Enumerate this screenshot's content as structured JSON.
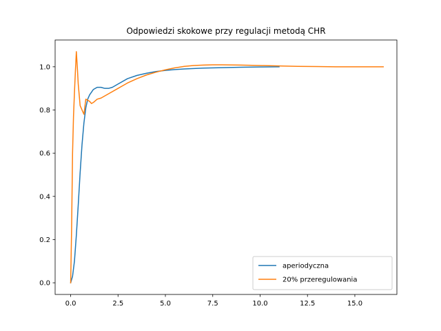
{
  "chart_data": {
    "type": "line",
    "title": "Odpowiedzi skokowe przy regulacji metodą CHR",
    "xlabel": "",
    "ylabel": "",
    "xlim": [
      -0.82,
      17.22
    ],
    "ylim": [
      -0.054,
      1.124
    ],
    "xticks": [
      0.0,
      2.5,
      5.0,
      7.5,
      10.0,
      12.5,
      15.0
    ],
    "xtick_labels": [
      "0.0",
      "2.5",
      "5.0",
      "7.5",
      "10.0",
      "12.5",
      "15.0"
    ],
    "yticks": [
      0.0,
      0.2,
      0.4,
      0.6,
      0.8,
      1.0
    ],
    "ytick_labels": [
      "0.0",
      "0.2",
      "0.4",
      "0.6",
      "0.8",
      "1.0"
    ],
    "grid": false,
    "legend_position": "lower-right",
    "series": [
      {
        "name": "aperiodyczna",
        "color": "#1f77b4",
        "x": [
          0,
          0.1,
          0.2,
          0.3,
          0.4,
          0.5,
          0.6,
          0.7,
          0.8,
          0.9,
          1.0,
          1.2,
          1.4,
          1.6,
          1.8,
          2.0,
          2.2,
          2.5,
          3.0,
          3.5,
          4.0,
          4.5,
          5.0,
          5.5,
          6.0,
          7.0,
          8.0,
          9.0,
          10.0,
          11.0
        ],
        "y": [
          0,
          0.03,
          0.1,
          0.22,
          0.36,
          0.51,
          0.64,
          0.74,
          0.81,
          0.85,
          0.87,
          0.895,
          0.905,
          0.905,
          0.9,
          0.9,
          0.905,
          0.92,
          0.945,
          0.96,
          0.97,
          0.978,
          0.983,
          0.987,
          0.99,
          0.994,
          0.996,
          0.998,
          0.999,
          1.0
        ]
      },
      {
        "name": "20% przeregulowania",
        "color": "#ff7f0e",
        "x": [
          0,
          0.05,
          0.1,
          0.15,
          0.2,
          0.25,
          0.3,
          0.35,
          0.4,
          0.45,
          0.5,
          0.55,
          0.6,
          0.7,
          0.8,
          0.9,
          1.0,
          1.1,
          1.2,
          1.4,
          1.6,
          1.8,
          2.0,
          2.5,
          3.0,
          3.5,
          4.0,
          4.5,
          5.0,
          5.5,
          6.0,
          6.5,
          7.0,
          7.5,
          8.0,
          9.0,
          10.0,
          11.0,
          12.0,
          13.0,
          14.0,
          15.0,
          16.0,
          16.5
        ],
        "y": [
          0,
          0.25,
          0.6,
          0.77,
          0.88,
          0.98,
          1.07,
          1.0,
          0.92,
          0.87,
          0.82,
          0.81,
          0.8,
          0.78,
          0.85,
          0.845,
          0.84,
          0.83,
          0.835,
          0.85,
          0.855,
          0.865,
          0.875,
          0.9,
          0.925,
          0.945,
          0.962,
          0.975,
          0.986,
          0.995,
          1.002,
          1.006,
          1.008,
          1.009,
          1.009,
          1.008,
          1.006,
          1.004,
          1.002,
          1.001,
          1.0,
          1.0,
          1.0,
          1.0
        ]
      }
    ]
  }
}
